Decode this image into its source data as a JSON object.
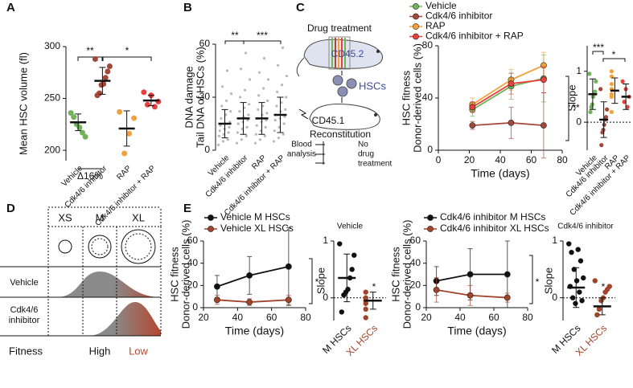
{
  "panel_labels": [
    "A",
    "B",
    "C",
    "D",
    "E"
  ],
  "diagram_c": {
    "title": "Drug treatment",
    "donor": "CD45.2",
    "cells": "HSCs",
    "recipient": "CD45.1",
    "step": "Reconstitution",
    "blood": [
      "Blood",
      "analysis"
    ],
    "no_drug": [
      "No",
      "drug",
      "treatment"
    ]
  },
  "diagram_d": {
    "sizes": [
      "XS",
      "M",
      "XL"
    ],
    "rows": [
      "Vehicle",
      [
        "Cdk4/6",
        "inhibitor"
      ]
    ],
    "x_label": "Fitness",
    "high": "High",
    "low": "Low"
  },
  "chart_data": [
    {
      "type": "dot",
      "ylabel": "Mean HSC volume (fl)",
      "categories": [
        "Vehicle",
        "Cdk4/6 inhibitor",
        "RAP",
        "Cdk4/6 inhibitor + RAP"
      ],
      "colors": [
        "#72b35a",
        "#a3473a",
        "#f2a23a",
        "#e8403a"
      ],
      "values": [
        227,
        267,
        221,
        248
      ],
      "errors": [
        8,
        13,
        17,
        5
      ],
      "points": [
        [
          236,
          232,
          225,
          222,
          217,
          213
        ],
        [
          288,
          281,
          276,
          270,
          264,
          263,
          255,
          253
        ],
        [
          237,
          231,
          216,
          197
        ],
        [
          256,
          253,
          247,
          244,
          242
        ]
      ],
      "ylim": [
        190,
        300
      ],
      "yticks": [
        200,
        250,
        300
      ],
      "annotations": [
        "**",
        "*",
        "Δ16%"
      ]
    },
    {
      "type": "dot",
      "ylabel": [
        "DNA damage",
        "Tail DNA of HSCs (%)"
      ],
      "categories": [
        "Vehicle",
        "Cdk4/6 inhibitor",
        "RAP",
        "Cdk4/6 inhibitor + RAP"
      ],
      "color": "#a0a0a0",
      "values": [
        15,
        18,
        18,
        20
      ],
      "errors": [
        8,
        9,
        9,
        10
      ],
      "points": [
        [
          3,
          5,
          6,
          8,
          9,
          10,
          11,
          12,
          13,
          14,
          15,
          16,
          18,
          20,
          22,
          25,
          28,
          32,
          36,
          45
        ],
        [
          4,
          6,
          8,
          10,
          12,
          13,
          15,
          16,
          17,
          18,
          19,
          20,
          22,
          24,
          26,
          30,
          34,
          40,
          46,
          55
        ],
        [
          4,
          6,
          8,
          9,
          11,
          13,
          14,
          16,
          17,
          18,
          20,
          21,
          23,
          25,
          28,
          31,
          35,
          40,
          44,
          52
        ],
        [
          5,
          7,
          9,
          11,
          13,
          15,
          17,
          18,
          19,
          20,
          22,
          23,
          25,
          27,
          30,
          33,
          37,
          42,
          48,
          58
        ]
      ],
      "ylim": [
        0,
        60
      ],
      "yticks": [
        0,
        30,
        60
      ],
      "annotations": [
        "**",
        "***"
      ]
    },
    {
      "type": "line",
      "xlabel": "Time (days)",
      "ylabel": [
        "HSC fitness",
        "Donor-derived cells (%)"
      ],
      "x": [
        22,
        47,
        68
      ],
      "series": [
        {
          "name": "Vehicle",
          "color": "#72b35a",
          "values": [
            31,
            49,
            55
          ],
          "errors": [
            5,
            10,
            18
          ]
        },
        {
          "name": "Cdk4/6 inhibitor",
          "color": "#a3473a",
          "values": [
            19,
            21,
            19
          ],
          "errors": [
            3,
            12,
            25
          ]
        },
        {
          "name": "RAP",
          "color": "#f2a23a",
          "values": [
            35,
            54,
            65
          ],
          "errors": [
            5,
            8,
            10
          ]
        },
        {
          "name": "Cdk4/6 inhibitor  + RAP",
          "color": "#e8403a",
          "values": [
            33,
            51,
            54
          ],
          "errors": [
            4,
            8,
            10
          ]
        }
      ],
      "xlim": [
        0,
        80
      ],
      "ylim": [
        0,
        80
      ],
      "xticks": [
        0,
        20,
        40,
        60,
        80
      ],
      "yticks": [
        0,
        40,
        80
      ],
      "annotations": [
        "**"
      ]
    },
    {
      "type": "dot",
      "ylabel": "Slope",
      "categories": [
        "Vehicle",
        "Cdk4/6 inhibitor",
        "RAP",
        "Cdk4/6 inhibitor + RAP"
      ],
      "colors": [
        "#72b35a",
        "#a3473a",
        "#f2a23a",
        "#e8403a"
      ],
      "values": [
        0.55,
        0.05,
        0.62,
        0.5
      ],
      "errors": [
        0.3,
        0.35,
        0.25,
        0.25
      ],
      "points": [
        [
          0.95,
          0.8,
          0.6,
          0.55,
          0.5,
          0.35,
          0.3,
          0.2
        ],
        [
          0.65,
          0.25,
          0.1,
          0.05,
          -0.05,
          -0.15,
          -0.2,
          -0.45
        ],
        [
          1.0,
          0.9,
          0.75,
          0.65,
          0.55,
          0.5,
          0.2
        ],
        [
          0.8,
          0.65,
          0.5,
          0.4,
          0.3
        ]
      ],
      "ylim": [
        -0.55,
        1.5
      ],
      "yticks": [
        0,
        1
      ],
      "refline": 0,
      "annotations": [
        "***",
        "*"
      ]
    },
    {
      "type": "line",
      "xlabel": "Time (days)",
      "ylabel": [
        "HSC fitness",
        "Donor-derived cells (%)"
      ],
      "x": [
        28,
        47,
        70
      ],
      "series": [
        {
          "name": "Vehicle M HSCs",
          "color": "#111111",
          "values": [
            19,
            29,
            37
          ],
          "errors": [
            10,
            17,
            35
          ]
        },
        {
          "name": "Vehicle XL HSCs",
          "color": "#a0442b",
          "values": [
            7,
            5,
            7
          ],
          "errors": [
            4,
            3,
            4
          ]
        }
      ],
      "xlim": [
        20,
        80
      ],
      "ylim": [
        0,
        60
      ],
      "xticks": [
        20,
        40,
        60,
        80
      ],
      "yticks": [
        0,
        20,
        40,
        60
      ],
      "annotations": [
        "*"
      ]
    },
    {
      "type": "dot",
      "title": "Vehicle",
      "ylabel": "Slope",
      "categories": [
        "M HSCs",
        "XL HSCs"
      ],
      "colors": [
        "#111111",
        "#a0442b"
      ],
      "label_colors": [
        "#111111",
        "#a0442b"
      ],
      "values": [
        0.35,
        -0.05
      ],
      "errors": [
        0.42,
        0.15
      ],
      "points": [
        [
          0.95,
          0.75,
          0.5,
          0.35,
          0.15,
          0.1,
          0.05,
          -0.25
        ],
        [
          0.1,
          0.0,
          -0.05,
          -0.05,
          -0.1,
          -0.2,
          -0.35
        ]
      ],
      "ylim": [
        -0.4,
        1
      ],
      "yticks": [
        0,
        1
      ],
      "refline": 0,
      "annotations": [
        "*"
      ]
    },
    {
      "type": "line",
      "xlabel": "Time (days)",
      "ylabel": [
        "HSC fitness",
        "Donor-derived cells (%)"
      ],
      "x": [
        26,
        46,
        68
      ],
      "series": [
        {
          "name": "Cdk4/6 inhibitor M HSCs",
          "color": "#111111",
          "values": [
            24,
            30,
            30
          ],
          "errors": [
            13,
            23,
            30
          ]
        },
        {
          "name": "Cdk4/6 inhibitor XL HSCs",
          "color": "#a0442b",
          "values": [
            16,
            11,
            9
          ],
          "errors": [
            11,
            9,
            4
          ]
        }
      ],
      "xlim": [
        20,
        80
      ],
      "ylim": [
        0,
        60
      ],
      "xticks": [
        20,
        40,
        60,
        80
      ],
      "yticks": [
        0,
        20,
        40,
        60
      ],
      "annotations": [
        "*"
      ]
    },
    {
      "type": "dot",
      "title": "Cdk4/6 inhibitor",
      "ylabel": "Slope",
      "categories": [
        "M HSCs",
        "XL HSCs"
      ],
      "colors": [
        "#111111",
        "#a0442b"
      ],
      "label_colors": [
        "#111111",
        "#a0442b"
      ],
      "values": [
        0.18,
        -0.15
      ],
      "errors": [
        0.35,
        0.15
      ],
      "points": [
        [
          0.95,
          0.85,
          0.8,
          0.65,
          0.5,
          0.35,
          0.3,
          0.2,
          0.1,
          0.0,
          -0.05,
          -0.1
        ],
        [
          0.3,
          0.2,
          0.15,
          0.1,
          0.0,
          -0.05,
          -0.2,
          -0.3
        ]
      ],
      "ylim": [
        -0.4,
        1
      ],
      "yticks": [
        0,
        1
      ],
      "refline": 0,
      "annotations": [
        "*"
      ]
    }
  ]
}
